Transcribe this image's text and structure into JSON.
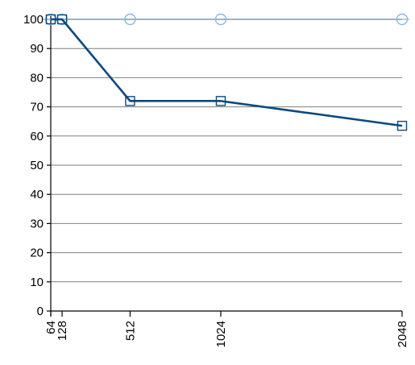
{
  "chart_data": {
    "type": "line",
    "title": "",
    "xlabel": "",
    "ylabel": "",
    "x": [
      64,
      128,
      512,
      1024,
      2048
    ],
    "x_tick_labels": [
      "64",
      "128",
      "512",
      "1024",
      "2048"
    ],
    "xlim": [
      64,
      2048
    ],
    "ylim": [
      0,
      100
    ],
    "y_ticks": [
      0,
      10,
      20,
      30,
      40,
      50,
      60,
      70,
      80,
      90,
      100
    ],
    "y_tick_labels": [
      "0",
      "10",
      "20",
      "30",
      "40",
      "50",
      "60",
      "70",
      "80",
      "90",
      "100"
    ],
    "grid": "horizontal",
    "legend": "none",
    "series": [
      {
        "values": [
          100,
          100,
          100,
          100,
          100
        ],
        "marker": "circle",
        "color": "#8ab8e0"
      },
      {
        "values": [
          100,
          100,
          72,
          72,
          63.5
        ],
        "marker": "square",
        "color": "#0c4a7d"
      }
    ]
  }
}
